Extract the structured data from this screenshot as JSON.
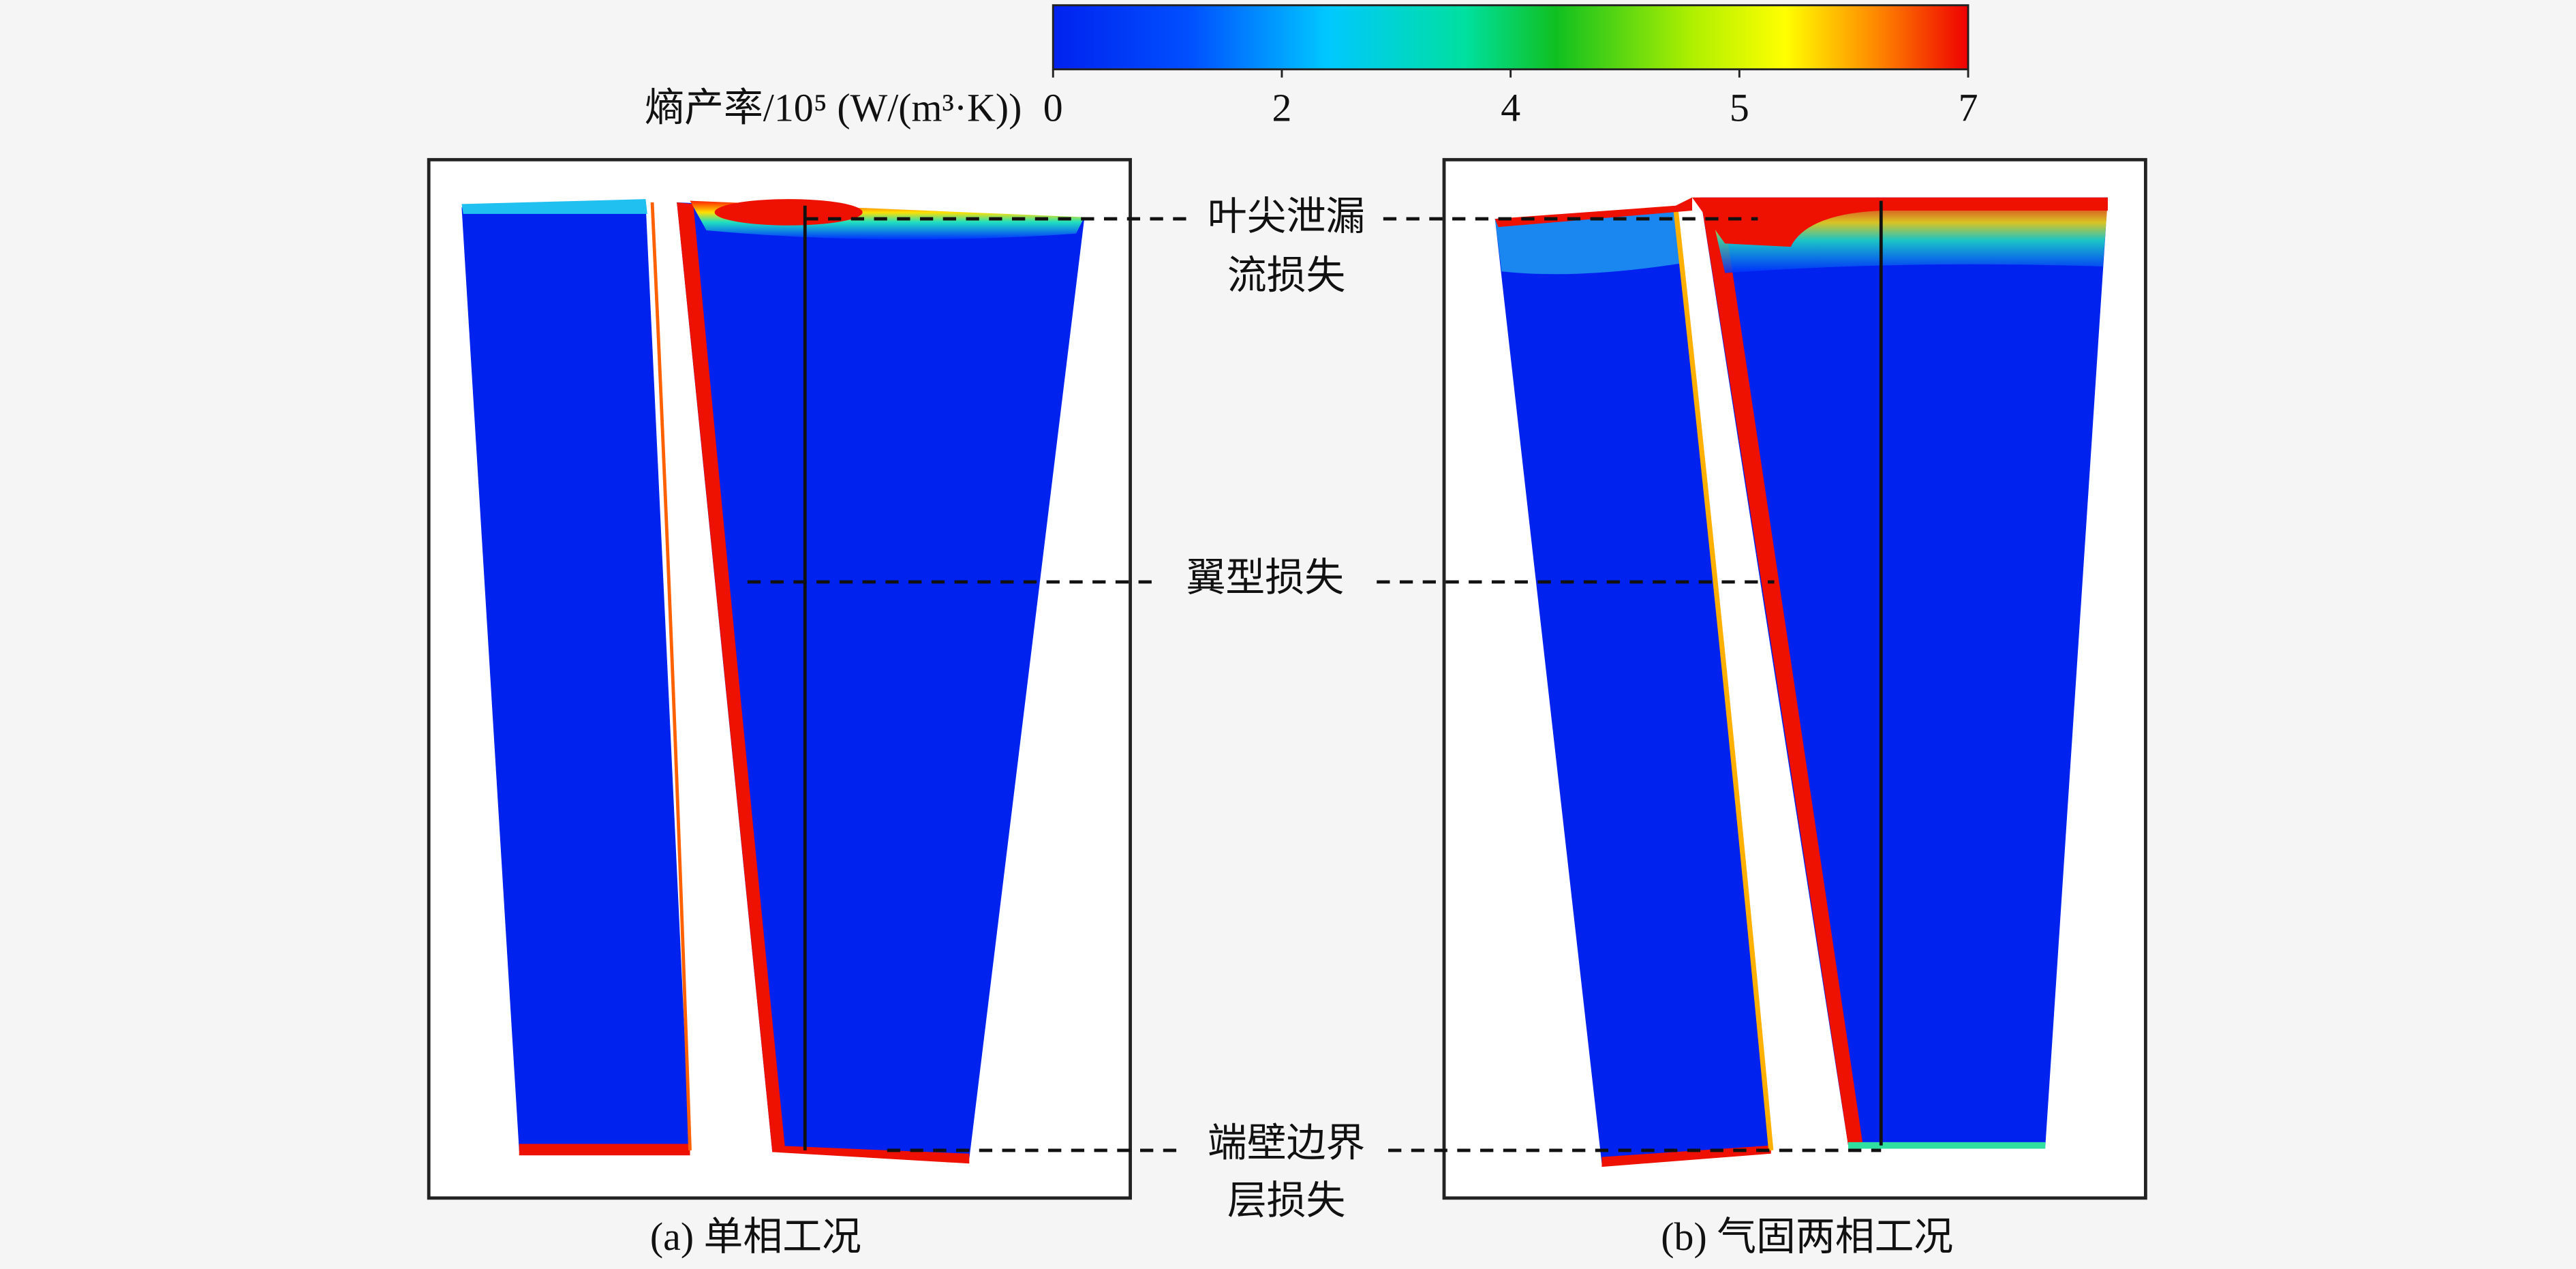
{
  "colorbar": {
    "label": "熵产率/10⁵ (W/(m³·K))",
    "lim": [
      0,
      7
    ],
    "ticks": [
      0,
      {
        "value": 1.75,
        "label": "2"
      },
      {
        "value": 3.5,
        "label": "4"
      },
      {
        "value": 5.25,
        "label": "5"
      },
      7
    ]
  },
  "annotations": [
    [
      "叶尖泄漏",
      "流损失"
    ],
    [
      "翼型损失"
    ],
    [
      "端壁边界",
      "层损失"
    ]
  ],
  "panels": [
    "(a) 单相工况",
    "(b) 气固两相工况"
  ]
}
